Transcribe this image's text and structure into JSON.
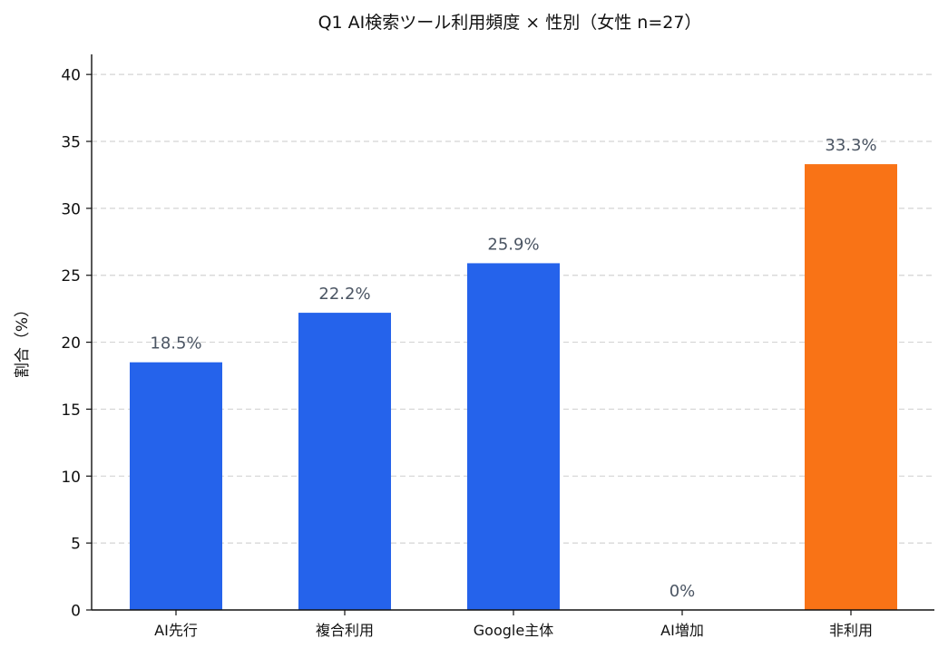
{
  "chart_data": {
    "type": "bar",
    "title": "Q1 AI検索ツール利用頻度 × 性別（女性 n=27）",
    "xlabel": "",
    "ylabel": "割合（%）",
    "ylim": [
      0,
      41.5
    ],
    "yticks": [
      0,
      5,
      10,
      15,
      20,
      25,
      30,
      35,
      40
    ],
    "grid": "y-dashed",
    "categories": [
      "AI先行",
      "複合利用",
      "Google主体",
      "AI増加",
      "非利用"
    ],
    "values": [
      18.5,
      22.2,
      25.9,
      0,
      33.3
    ],
    "value_labels": [
      "18.5%",
      "22.2%",
      "25.9%",
      "0%",
      "33.3%"
    ],
    "colors": [
      "#2563eb",
      "#2563eb",
      "#2563eb",
      "#2563eb",
      "#f97316"
    ]
  }
}
